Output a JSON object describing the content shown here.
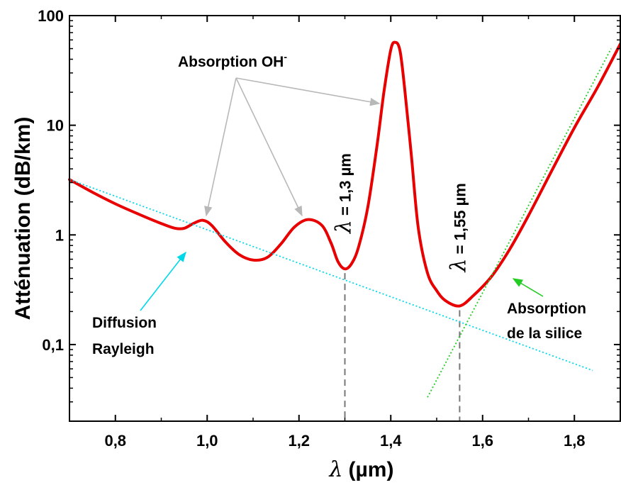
{
  "chart_data": {
    "type": "line",
    "title": "",
    "xlabel": {
      "symbol": "λ",
      "unit": "(µm)"
    },
    "ylabel": "Atténuation (dB/km)",
    "xlim": [
      0.7,
      1.9
    ],
    "ylim": [
      0.02,
      100
    ],
    "yscale": "log",
    "x_ticks": [
      0.8,
      1.0,
      1.2,
      1.4,
      1.6,
      1.8
    ],
    "x_tick_labels": [
      "0,8",
      "1,0",
      "1,2",
      "1,4",
      "1,6",
      "1,8"
    ],
    "y_ticks": [
      0.1,
      1,
      10,
      100
    ],
    "y_tick_labels": [
      "0,1",
      "1",
      "10",
      "100"
    ],
    "grid": false,
    "colors": {
      "attenuation": "#e80000",
      "rayleigh": "#00d8e8",
      "silice": "#22cc22",
      "oh_arrows": "#b8b8b8",
      "markers": "#777777"
    },
    "series": [
      {
        "key": "attenuation",
        "style": "solid",
        "x": [
          0.7,
          0.75,
          0.8,
          0.85,
          0.9,
          0.93,
          0.95,
          0.97,
          0.99,
          1.01,
          1.04,
          1.07,
          1.1,
          1.13,
          1.16,
          1.19,
          1.22,
          1.25,
          1.27,
          1.285,
          1.3,
          1.315,
          1.33,
          1.35,
          1.37,
          1.385,
          1.4,
          1.41,
          1.42,
          1.43,
          1.445,
          1.46,
          1.48,
          1.5,
          1.52,
          1.55,
          1.58,
          1.62,
          1.66,
          1.7,
          1.75,
          1.8,
          1.85,
          1.9
        ],
        "y": [
          3.2,
          2.45,
          1.92,
          1.55,
          1.27,
          1.15,
          1.15,
          1.27,
          1.36,
          1.22,
          0.86,
          0.66,
          0.59,
          0.62,
          0.82,
          1.18,
          1.38,
          1.22,
          0.84,
          0.57,
          0.49,
          0.55,
          0.78,
          1.8,
          6.5,
          20,
          49,
          57,
          48,
          22,
          5.2,
          1.15,
          0.45,
          0.31,
          0.25,
          0.225,
          0.28,
          0.42,
          0.75,
          1.5,
          3.8,
          9.5,
          22,
          55
        ]
      },
      {
        "key": "rayleigh",
        "style": "dotted",
        "x": [
          0.7,
          1.84
        ],
        "y": [
          3.2,
          0.058
        ]
      },
      {
        "key": "silice",
        "style": "dotted",
        "x": [
          1.48,
          1.88
        ],
        "y": [
          0.033,
          50
        ]
      }
    ],
    "markers": [
      {
        "x": 1.3,
        "y": 0.49,
        "label_symbol": "λ",
        "label_text": " = 1,3 µm"
      },
      {
        "x": 1.55,
        "y": 0.225,
        "label_symbol": "λ",
        "label_text": " = 1,55 µm"
      }
    ],
    "annotations": {
      "oh": {
        "text": "Absorption OH",
        "superscript": "-"
      },
      "rayleigh": {
        "line1": "Diffusion",
        "line2": "Rayleigh"
      },
      "silice": {
        "line1": "Absorption",
        "line2": "de la silice"
      }
    }
  }
}
